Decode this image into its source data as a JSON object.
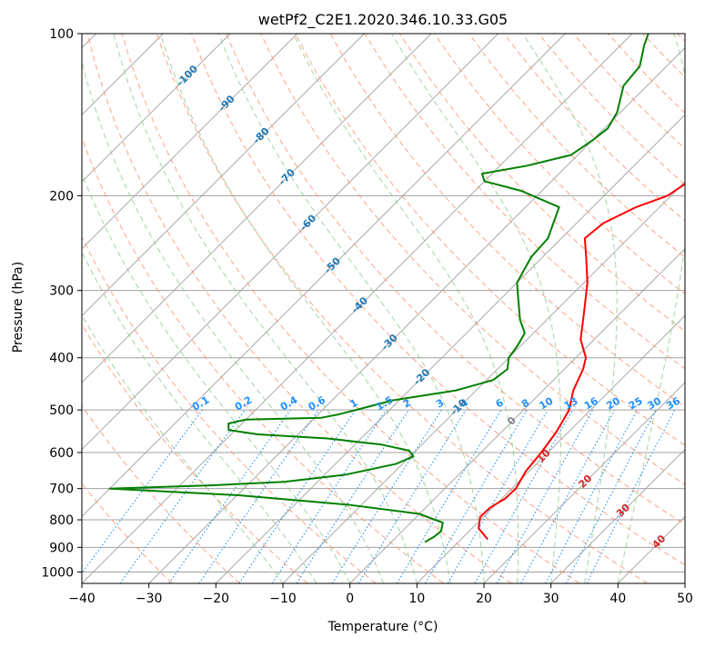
{
  "chart_data": {
    "type": "line",
    "subtype": "skew-t log-p",
    "title": "wetPf2_C2E1.2020.346.10.33.G05",
    "xlabel": "Temperature (°C)",
    "ylabel": "Pressure (hPa)",
    "xlim": [
      -40,
      50
    ],
    "ylim": [
      1050,
      100
    ],
    "x_ticks": [
      -40,
      -30,
      -20,
      -10,
      0,
      10,
      20,
      30,
      40,
      50
    ],
    "y_ticks": [
      100,
      200,
      300,
      400,
      500,
      600,
      700,
      800,
      900,
      1000
    ],
    "colors": {
      "temperature": "#ff0000",
      "dewpoint": "#008000",
      "isotherm": "#a0a0a0",
      "dry_adiabat": "#ff8c69",
      "moist_adiabat": "#90c890",
      "mixing_ratio": "#1e90ff",
      "isotherm_label": "#1f77b4",
      "warm_label": "#d62728",
      "zero_label": "#808080"
    },
    "series": [
      {
        "name": "Temperature",
        "points": [
          {
            "p": 870,
            "t": 14.0
          },
          {
            "p": 830,
            "t": 11.0
          },
          {
            "p": 790,
            "t": 9.5
          },
          {
            "p": 760,
            "t": 9.6
          },
          {
            "p": 730,
            "t": 10.5
          },
          {
            "p": 700,
            "t": 10.6
          },
          {
            "p": 650,
            "t": 9.5
          },
          {
            "p": 600,
            "t": 9.0
          },
          {
            "p": 550,
            "t": 8.2
          },
          {
            "p": 500,
            "t": 6.8
          },
          {
            "p": 460,
            "t": 4.5
          },
          {
            "p": 420,
            "t": 2.8
          },
          {
            "p": 400,
            "t": 1.5
          },
          {
            "p": 370,
            "t": -2.0
          },
          {
            "p": 330,
            "t": -5.5
          },
          {
            "p": 290,
            "t": -9.5
          },
          {
            "p": 260,
            "t": -13.5
          },
          {
            "p": 240,
            "t": -16.5
          },
          {
            "p": 225,
            "t": -16.0
          },
          {
            "p": 210,
            "t": -13.5
          },
          {
            "p": 200,
            "t": -10.5
          },
          {
            "p": 185,
            "t": -9.2
          },
          {
            "p": 170,
            "t": -10.5
          },
          {
            "p": 155,
            "t": -12.3
          },
          {
            "p": 145,
            "t": -13.2
          },
          {
            "p": 135,
            "t": -13.0
          },
          {
            "p": 125,
            "t": -13.5
          },
          {
            "p": 115,
            "t": -15.0
          },
          {
            "p": 100,
            "t": -17.3
          }
        ]
      },
      {
        "name": "Dewpoint",
        "points": [
          {
            "p": 880,
            "t": 5.0
          },
          {
            "p": 860,
            "t": 5.6
          },
          {
            "p": 840,
            "t": 5.8
          },
          {
            "p": 810,
            "t": 4.8
          },
          {
            "p": 780,
            "t": 0.0
          },
          {
            "p": 750,
            "t": -12.0
          },
          {
            "p": 720,
            "t": -30.0
          },
          {
            "p": 705,
            "t": -45.0
          },
          {
            "p": 700,
            "t": -50.0
          },
          {
            "p": 690,
            "t": -35.0
          },
          {
            "p": 680,
            "t": -25.0
          },
          {
            "p": 660,
            "t": -17.0
          },
          {
            "p": 630,
            "t": -11.0
          },
          {
            "p": 610,
            "t": -9.5
          },
          {
            "p": 595,
            "t": -11.0
          },
          {
            "p": 580,
            "t": -16.0
          },
          {
            "p": 565,
            "t": -25.0
          },
          {
            "p": 555,
            "t": -36.0
          },
          {
            "p": 545,
            "t": -41.0
          },
          {
            "p": 530,
            "t": -42.0
          },
          {
            "p": 521,
            "t": -40.0
          },
          {
            "p": 517,
            "t": -29.0
          },
          {
            "p": 510,
            "t": -27.0
          },
          {
            "p": 500,
            "t": -25.0
          },
          {
            "p": 480,
            "t": -21.0
          },
          {
            "p": 460,
            "t": -13.0
          },
          {
            "p": 440,
            "t": -9.0
          },
          {
            "p": 420,
            "t": -8.5
          },
          {
            "p": 400,
            "t": -10.0
          },
          {
            "p": 380,
            "t": -10.5
          },
          {
            "p": 360,
            "t": -11.3
          },
          {
            "p": 340,
            "t": -14.0
          },
          {
            "p": 310,
            "t": -17.5
          },
          {
            "p": 290,
            "t": -20.0
          },
          {
            "p": 260,
            "t": -21.7
          },
          {
            "p": 240,
            "t": -22.0
          },
          {
            "p": 210,
            "t": -25.0
          },
          {
            "p": 196,
            "t": -33.0
          },
          {
            "p": 188,
            "t": -40.0
          },
          {
            "p": 182,
            "t": -41.5
          },
          {
            "p": 176,
            "t": -36.0
          },
          {
            "p": 168,
            "t": -31.0
          },
          {
            "p": 158,
            "t": -30.0
          },
          {
            "p": 150,
            "t": -29.5
          },
          {
            "p": 140,
            "t": -30.5
          },
          {
            "p": 125,
            "t": -33.5
          },
          {
            "p": 115,
            "t": -34.0
          },
          {
            "p": 105,
            "t": -36.5
          },
          {
            "p": 100,
            "t": -37.6
          }
        ]
      }
    ],
    "isotherm_labels": [
      {
        "text": "-100",
        "t": -100,
        "p": 120
      },
      {
        "text": "-90",
        "t": -90,
        "p": 135
      },
      {
        "text": "-80",
        "t": -80,
        "p": 155
      },
      {
        "text": "-70",
        "t": -70,
        "p": 185
      },
      {
        "text": "-60",
        "t": -60,
        "p": 225
      },
      {
        "text": "-50",
        "t": -50,
        "p": 270
      },
      {
        "text": "-40",
        "t": -40,
        "p": 320
      },
      {
        "text": "-30",
        "t": -30,
        "p": 375
      },
      {
        "text": "-20",
        "t": -20,
        "p": 435
      },
      {
        "text": "-10",
        "t": -10,
        "p": 495
      },
      {
        "text": "0",
        "t": 0,
        "p": 525
      },
      {
        "text": "10",
        "t": 10,
        "p": 610
      },
      {
        "text": "20",
        "t": 20,
        "p": 680
      },
      {
        "text": "30",
        "t": 30,
        "p": 770
      },
      {
        "text": "40",
        "t": 40,
        "p": 880
      }
    ],
    "mixing_ratio_lines": [
      "0.1",
      "0.2",
      "0.4",
      "0.6",
      "1",
      "1.5",
      "2",
      "3",
      "4",
      "6",
      "8",
      "10",
      "13",
      "16",
      "20",
      "25",
      "30",
      "36"
    ],
    "mixing_ratio_label_pressure": 500
  }
}
